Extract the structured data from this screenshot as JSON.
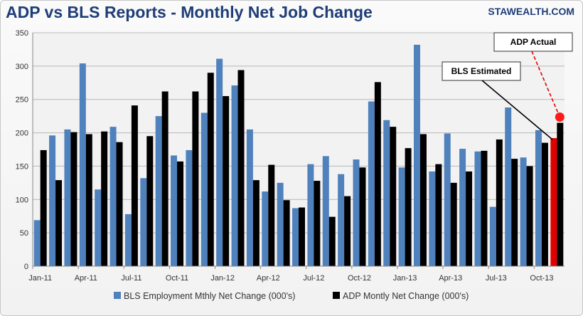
{
  "header": {
    "title": "ADP vs BLS Reports - Monthly Net Job Change",
    "brand": "STAWEALTH.COM"
  },
  "chart_data": {
    "type": "bar",
    "title": "ADP vs BLS Reports - Monthly Net Job Change",
    "xlabel": "",
    "ylabel": "",
    "ylim": [
      0,
      350
    ],
    "yticks": [
      0,
      50,
      100,
      150,
      200,
      250,
      300,
      350
    ],
    "grid": true,
    "legend_position": "bottom",
    "categories": [
      "Jan-11",
      "Feb-11",
      "Mar-11",
      "Apr-11",
      "May-11",
      "Jun-11",
      "Jul-11",
      "Aug-11",
      "Sep-11",
      "Oct-11",
      "Nov-11",
      "Dec-11",
      "Jan-12",
      "Feb-12",
      "Mar-12",
      "Apr-12",
      "May-12",
      "Jun-12",
      "Jul-12",
      "Aug-12",
      "Sep-12",
      "Oct-12",
      "Nov-12",
      "Dec-12",
      "Jan-13",
      "Feb-13",
      "Mar-13",
      "Apr-13",
      "May-13",
      "Jun-13",
      "Jul-13",
      "Aug-13",
      "Sep-13",
      "Oct-13",
      "Nov-13"
    ],
    "x_tick_labels": [
      {
        "label": "Jan-11",
        "index": 0
      },
      {
        "label": "Apr-11",
        "index": 3
      },
      {
        "label": "Jul-11",
        "index": 6
      },
      {
        "label": "Oct-11",
        "index": 9
      },
      {
        "label": "Jan-12",
        "index": 12
      },
      {
        "label": "Apr-12",
        "index": 15
      },
      {
        "label": "Jul-12",
        "index": 18
      },
      {
        "label": "Oct-12",
        "index": 21
      },
      {
        "label": "Jan-13",
        "index": 24
      },
      {
        "label": "Apr-13",
        "index": 27
      },
      {
        "label": "Jul-13",
        "index": 30
      },
      {
        "label": "Oct-13",
        "index": 33
      }
    ],
    "series": [
      {
        "name": "BLS Employment Mthly Net Change (000's)",
        "color": "#4f81bd",
        "values": [
          69,
          196,
          205,
          304,
          115,
          209,
          78,
          132,
          225,
          166,
          174,
          230,
          311,
          271,
          205,
          112,
          125,
          87,
          153,
          165,
          138,
          160,
          247,
          219,
          148,
          332,
          142,
          199,
          176,
          172,
          89,
          238,
          163,
          204,
          192
        ]
      },
      {
        "name": "ADP Montly Net Change (000's)",
        "color": "#000000",
        "values": [
          174,
          129,
          201,
          198,
          202,
          186,
          241,
          195,
          262,
          157,
          262,
          290,
          255,
          294,
          129,
          152,
          99,
          88,
          128,
          74,
          105,
          148,
          276,
          209,
          177,
          198,
          153,
          125,
          142,
          173,
          190,
          161,
          150,
          185,
          215
        ]
      }
    ],
    "highlight": {
      "series": 0,
      "index": 34,
      "color": "#e00000",
      "note": "BLS Estimated"
    },
    "annotations": [
      {
        "text": "ADP Actual",
        "series": 1,
        "index": 34,
        "style": "red-dashed"
      },
      {
        "text": "BLS Estimated",
        "series": 0,
        "index": 34,
        "style": "black-solid"
      }
    ]
  }
}
